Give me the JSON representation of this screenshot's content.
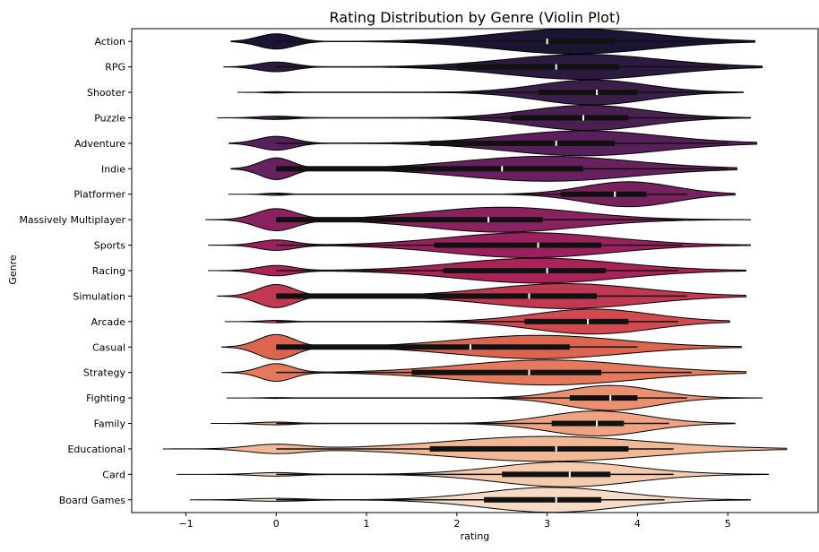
{
  "chart_data": {
    "type": "violin",
    "title": "Rating Distribution by Genre (Violin Plot)",
    "xlabel": "rating",
    "ylabel": "Genre",
    "xlim": [
      -1.6,
      6.0
    ],
    "xticks": [
      -1,
      0,
      1,
      2,
      3,
      4,
      5
    ],
    "x_tick_labels": [
      "−1",
      "0",
      "1",
      "2",
      "3",
      "4",
      "5"
    ],
    "orientation": "horizontal",
    "grid": false,
    "categories": [
      {
        "name": "Action",
        "color": "#1b1433",
        "median": 3.0,
        "q1": 3.0,
        "q3": 3.75,
        "whisker": [
          0.0,
          5.0
        ],
        "range": [
          -0.5,
          5.3
        ],
        "modes": [
          {
            "c": 0.0,
            "w": 0.2,
            "h": 0.55
          },
          {
            "c": 3.3,
            "w": 0.85,
            "h": 0.9
          }
        ]
      },
      {
        "name": "RPG",
        "color": "#2c1a40",
        "median": 3.1,
        "q1": 2.0,
        "q3": 3.8,
        "whisker": [
          0.0,
          5.0
        ],
        "range": [
          -0.58,
          5.38
        ],
        "modes": [
          {
            "c": 0.0,
            "w": 0.2,
            "h": 0.35
          },
          {
            "c": 3.4,
            "w": 0.85,
            "h": 0.9
          }
        ]
      },
      {
        "name": "Shooter",
        "color": "#3a1e4a",
        "median": 3.55,
        "q1": 2.9,
        "q3": 4.0,
        "whisker": [
          0.0,
          5.0
        ],
        "range": [
          -0.43,
          5.17
        ],
        "modes": [
          {
            "c": 0.0,
            "w": 0.12,
            "h": 0.05
          },
          {
            "c": 3.5,
            "w": 0.6,
            "h": 0.9
          }
        ]
      },
      {
        "name": "Puzzle",
        "color": "#4a2052",
        "median": 3.4,
        "q1": 2.6,
        "q3": 3.9,
        "whisker": [
          0.0,
          5.0
        ],
        "range": [
          -0.65,
          5.25
        ],
        "modes": [
          {
            "c": 0.0,
            "w": 0.2,
            "h": 0.12
          },
          {
            "c": 3.45,
            "w": 0.65,
            "h": 0.9
          }
        ]
      },
      {
        "name": "Adventure",
        "color": "#58205a",
        "median": 3.1,
        "q1": 1.7,
        "q3": 3.75,
        "whisker": [
          0.0,
          5.0
        ],
        "range": [
          -0.52,
          5.32
        ],
        "modes": [
          {
            "c": 0.0,
            "w": 0.2,
            "h": 0.5
          },
          {
            "c": 3.4,
            "w": 0.85,
            "h": 0.9
          }
        ]
      },
      {
        "name": "Indie",
        "color": "#66215e",
        "median": 2.5,
        "q1": 0.0,
        "q3": 3.4,
        "whisker": [
          0.0,
          5.0
        ],
        "range": [
          -0.5,
          5.1
        ],
        "modes": [
          {
            "c": 0.0,
            "w": 0.18,
            "h": 0.65
          },
          {
            "c": 3.0,
            "w": 0.95,
            "h": 0.75
          }
        ]
      },
      {
        "name": "Platformer",
        "color": "#77225f",
        "median": 3.75,
        "q1": 3.15,
        "q3": 4.1,
        "whisker": [
          0.0,
          4.55
        ],
        "range": [
          -0.53,
          5.08
        ],
        "modes": [
          {
            "c": 0.0,
            "w": 0.12,
            "h": 0.08
          },
          {
            "c": 3.9,
            "w": 0.5,
            "h": 0.9
          }
        ]
      },
      {
        "name": "Massively Multiplayer",
        "color": "#882360",
        "median": 2.35,
        "q1": 0.0,
        "q3": 2.95,
        "whisker": [
          0.0,
          4.5
        ],
        "range": [
          -0.78,
          5.25
        ],
        "modes": [
          {
            "c": 0.0,
            "w": 0.22,
            "h": 0.7
          },
          {
            "c": 2.5,
            "w": 0.85,
            "h": 0.8
          }
        ]
      },
      {
        "name": "Sports",
        "color": "#9a205f",
        "median": 2.9,
        "q1": 1.75,
        "q3": 3.6,
        "whisker": [
          0.0,
          4.5
        ],
        "range": [
          -0.75,
          5.25
        ],
        "modes": [
          {
            "c": 0.0,
            "w": 0.2,
            "h": 0.35
          },
          {
            "c": 2.8,
            "w": 0.9,
            "h": 0.85
          }
        ]
      },
      {
        "name": "Racing",
        "color": "#aa2358",
        "median": 3.0,
        "q1": 1.85,
        "q3": 3.65,
        "whisker": [
          0.0,
          4.45
        ],
        "range": [
          -0.75,
          5.2
        ],
        "modes": [
          {
            "c": 0.0,
            "w": 0.2,
            "h": 0.35
          },
          {
            "c": 2.9,
            "w": 0.9,
            "h": 0.85
          }
        ]
      },
      {
        "name": "Simulation",
        "color": "#c13852",
        "median": 2.8,
        "q1": 0.0,
        "q3": 3.55,
        "whisker": [
          0.0,
          4.55
        ],
        "range": [
          -0.65,
          5.2
        ],
        "modes": [
          {
            "c": 0.0,
            "w": 0.2,
            "h": 0.7
          },
          {
            "c": 3.2,
            "w": 0.85,
            "h": 0.75
          }
        ]
      },
      {
        "name": "Arcade",
        "color": "#d04a50",
        "median": 3.45,
        "q1": 2.75,
        "q3": 3.9,
        "whisker": [
          0.0,
          4.45
        ],
        "range": [
          -0.57,
          5.02
        ],
        "modes": [
          {
            "c": 0.0,
            "w": 0.15,
            "h": 0.08
          },
          {
            "c": 3.5,
            "w": 0.65,
            "h": 0.85
          }
        ]
      },
      {
        "name": "Casual",
        "color": "#dc6550",
        "median": 2.15,
        "q1": 0.0,
        "q3": 3.25,
        "whisker": [
          0.0,
          4.0
        ],
        "range": [
          -0.6,
          5.15
        ],
        "modes": [
          {
            "c": 0.0,
            "w": 0.2,
            "h": 0.8
          },
          {
            "c": 2.9,
            "w": 0.9,
            "h": 0.75
          }
        ]
      },
      {
        "name": "Strategy",
        "color": "#e47a5b",
        "median": 2.8,
        "q1": 1.5,
        "q3": 3.6,
        "whisker": [
          0.0,
          4.6
        ],
        "range": [
          -0.6,
          5.2
        ],
        "modes": [
          {
            "c": 0.0,
            "w": 0.18,
            "h": 0.6
          },
          {
            "c": 3.0,
            "w": 0.95,
            "h": 0.85
          }
        ]
      },
      {
        "name": "Fighting",
        "color": "#ea9070",
        "median": 3.7,
        "q1": 3.25,
        "q3": 4.0,
        "whisker": [
          0.0,
          4.55
        ],
        "range": [
          -0.55,
          5.38
        ],
        "modes": [
          {
            "c": 0.0,
            "w": 0.12,
            "h": 0.03
          },
          {
            "c": 3.7,
            "w": 0.5,
            "h": 0.9
          }
        ]
      },
      {
        "name": "Family",
        "color": "#eea482",
        "median": 3.55,
        "q1": 3.05,
        "q3": 3.85,
        "whisker": [
          0.0,
          4.35
        ],
        "range": [
          -0.72,
          5.08
        ],
        "modes": [
          {
            "c": 0.0,
            "w": 0.2,
            "h": 0.1
          },
          {
            "c": 3.55,
            "w": 0.55,
            "h": 0.9
          }
        ]
      },
      {
        "name": "Educational",
        "color": "#f1b895",
        "median": 3.1,
        "q1": 1.7,
        "q3": 3.9,
        "whisker": [
          0.0,
          4.4
        ],
        "range": [
          -1.25,
          5.65
        ],
        "modes": [
          {
            "c": 0.0,
            "w": 0.3,
            "h": 0.25
          },
          {
            "c": 3.0,
            "w": 1.1,
            "h": 0.7
          }
        ]
      },
      {
        "name": "Card",
        "color": "#f4cbad",
        "median": 3.25,
        "q1": 2.5,
        "q3": 3.7,
        "whisker": [
          0.0,
          4.4
        ],
        "range": [
          -1.1,
          5.45
        ],
        "modes": [
          {
            "c": 0.0,
            "w": 0.25,
            "h": 0.12
          },
          {
            "c": 3.2,
            "w": 0.75,
            "h": 0.85
          }
        ]
      },
      {
        "name": "Board Games",
        "color": "#f6dcc6",
        "median": 3.1,
        "q1": 2.3,
        "q3": 3.6,
        "whisker": [
          0.0,
          4.3
        ],
        "range": [
          -0.95,
          5.25
        ],
        "modes": [
          {
            "c": 0.0,
            "w": 0.3,
            "h": 0.1
          },
          {
            "c": 3.05,
            "w": 0.75,
            "h": 0.85
          }
        ]
      }
    ]
  }
}
